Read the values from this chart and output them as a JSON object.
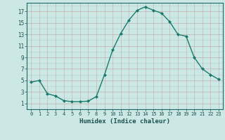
{
  "x": [
    0,
    1,
    2,
    3,
    4,
    5,
    6,
    7,
    8,
    9,
    10,
    11,
    12,
    13,
    14,
    15,
    16,
    17,
    18,
    19,
    20,
    21,
    22,
    23
  ],
  "y": [
    4.7,
    5.0,
    2.7,
    2.3,
    1.5,
    1.3,
    1.3,
    1.4,
    2.2,
    6.0,
    10.3,
    13.2,
    15.5,
    17.2,
    17.8,
    17.2,
    16.7,
    15.2,
    13.0,
    12.7,
    9.0,
    7.0,
    6.0,
    5.2
  ],
  "xlim": [
    -0.5,
    23.5
  ],
  "ylim": [
    0,
    18.5
  ],
  "yticks": [
    1,
    3,
    5,
    7,
    9,
    11,
    13,
    15,
    17
  ],
  "xticks": [
    0,
    1,
    2,
    3,
    4,
    5,
    6,
    7,
    8,
    9,
    10,
    11,
    12,
    13,
    14,
    15,
    16,
    17,
    18,
    19,
    20,
    21,
    22,
    23
  ],
  "xlabel": "Humidex (Indice chaleur)",
  "line_color": "#1a7a6e",
  "marker_color": "#1a7a6e",
  "bg_color": "#cce8e4",
  "grid_color_light": "#b0d4cf",
  "grid_color_pink": "#c8a8a8",
  "fig_bg": "#cce8e4",
  "tick_color": "#1a5050",
  "spine_color": "#1a6a6a"
}
